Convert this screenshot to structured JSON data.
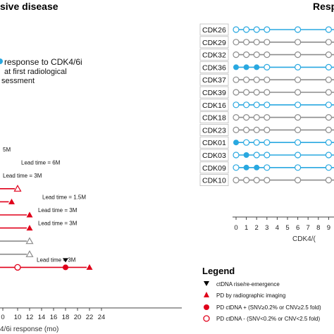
{
  "left_panel": {
    "title": "sive disease",
    "note_line1": "response to CDK4/6i",
    "note_line2": "at first radiological",
    "note_line3": "sessment",
    "x_axis_label": "4/6i response (mo)"
  },
  "right_panel": {
    "title": "Resp",
    "x_axis_label": "CDK4/("
  },
  "legend": {
    "title": "Legend",
    "items": [
      {
        "label": "ctDNA rise/re-emergence",
        "icon": "down-triangle-icon"
      },
      {
        "label": "PD by radiographic imaging",
        "icon": "up-triangle-icon"
      },
      {
        "label": "PD ctDNA + (SNV≥0.2% or CNV≥2.5 fold)",
        "icon": "filled-circle-icon"
      },
      {
        "label": "PD ctDNA - (SNV<0.2% or CNV<2.5 fold)",
        "icon": "open-circle-icon"
      }
    ]
  },
  "colors": {
    "red": "#e0001a",
    "grey": "#8c8c8c",
    "blue": "#29a8e0",
    "black": "#000000"
  },
  "chart_data": [
    {
      "type": "timeline",
      "panel": "left",
      "title": "sive disease",
      "xlabel": "4/6i response (mo)",
      "x_ticks": [
        0,
        10,
        12,
        14,
        16,
        18,
        20,
        22,
        24
      ],
      "partial_tick_label": "5M",
      "rows": [
        {
          "annotation": "5M",
          "color": "black",
          "end": null,
          "markers": []
        },
        {
          "annotation": "Lead time = 6M",
          "color": "black",
          "end": null,
          "markers": []
        },
        {
          "annotation": "Lead time = 3M",
          "color": "black",
          "end": null,
          "markers": []
        },
        {
          "annotation": "",
          "color": "red",
          "end": 10,
          "markers": [
            {
              "x": 10,
              "symbol": "open-triangle"
            }
          ]
        },
        {
          "annotation": "Lead time = 1.5M",
          "color": "red",
          "end": 9,
          "markers": [
            {
              "x": 9,
              "symbol": "triangle"
            }
          ]
        },
        {
          "annotation": "Lead time = 3M",
          "color": "red",
          "end": 12,
          "markers": [
            {
              "x": 12,
              "symbol": "triangle"
            }
          ]
        },
        {
          "annotation": "Lead time = 3M",
          "color": "red",
          "end": 12,
          "markers": [
            {
              "x": 12,
              "symbol": "triangle"
            }
          ]
        },
        {
          "annotation": "",
          "color": "grey",
          "end": 12,
          "markers": [
            {
              "x": 12,
              "symbol": "open-triangle"
            }
          ]
        },
        {
          "annotation": "",
          "color": "grey",
          "end": 12,
          "markers": [
            {
              "x": 12,
              "symbol": "open-triangle"
            }
          ]
        },
        {
          "annotation": "Lead time = 3M",
          "color": "red",
          "end": 22,
          "markers": [
            {
              "x": 10,
              "symbol": "open-circle"
            },
            {
              "x": 18,
              "symbol": "circle"
            },
            {
              "x": 18,
              "symbol": "down-triangle"
            },
            {
              "x": 22,
              "symbol": "triangle"
            }
          ]
        }
      ]
    },
    {
      "type": "timeline",
      "panel": "right",
      "title": "Resp",
      "xlabel": "CDK4/(",
      "x_ticks": [
        0,
        1,
        2,
        3,
        4,
        5,
        6,
        7,
        8,
        9
      ],
      "rows": [
        {
          "patient": "CDK26",
          "color": "blue",
          "open": [
            0,
            1,
            2,
            3,
            6,
            9
          ],
          "filled": []
        },
        {
          "patient": "CDK29",
          "color": "grey",
          "open": [
            0,
            1,
            2,
            3,
            6,
            9
          ],
          "filled": []
        },
        {
          "patient": "CDK32",
          "color": "grey",
          "open": [
            0,
            1,
            2,
            3,
            6,
            9
          ],
          "filled": []
        },
        {
          "patient": "CDK36",
          "color": "blue",
          "open": [
            3,
            6,
            9
          ],
          "filled": [
            0,
            1,
            2
          ]
        },
        {
          "patient": "CDK37",
          "color": "grey",
          "open": [
            0,
            1,
            2,
            3,
            6,
            9
          ],
          "filled": []
        },
        {
          "patient": "CDK39",
          "color": "grey",
          "open": [
            0,
            1,
            2,
            3,
            6,
            9
          ],
          "filled": []
        },
        {
          "patient": "CDK16",
          "color": "blue",
          "open": [
            0,
            1,
            2,
            3,
            6,
            9
          ],
          "filled": []
        },
        {
          "patient": "CDK18",
          "color": "grey",
          "open": [
            0,
            1,
            2,
            3,
            6,
            9
          ],
          "filled": []
        },
        {
          "patient": "CDK23",
          "color": "grey",
          "open": [
            0,
            1,
            2,
            3,
            6,
            9
          ],
          "filled": []
        },
        {
          "patient": "CDK01",
          "color": "blue",
          "open": [
            1,
            2,
            3,
            6,
            9
          ],
          "filled": [
            0
          ]
        },
        {
          "patient": "CDK03",
          "color": "blue",
          "open": [
            0,
            2,
            3,
            6,
            9
          ],
          "filled": [
            1
          ]
        },
        {
          "patient": "CDK09",
          "color": "blue",
          "open": [
            0,
            3,
            6,
            9
          ],
          "filled": [
            1,
            2
          ]
        },
        {
          "patient": "CDK10",
          "color": "grey",
          "open": [
            0,
            1,
            2,
            3,
            6,
            9
          ],
          "filled": []
        }
      ]
    }
  ]
}
